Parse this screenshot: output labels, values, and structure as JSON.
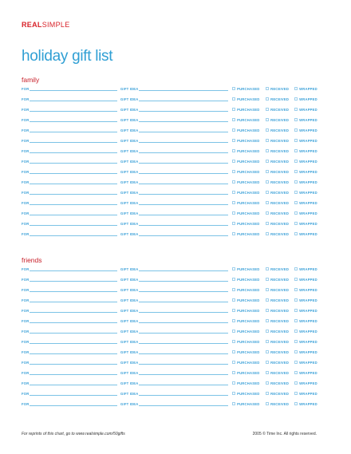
{
  "header": {
    "logo_real": "REAL",
    "logo_simple": "SIMPLE",
    "title": "holiday gift list"
  },
  "row_labels": {
    "for": "FOR",
    "gift_idea": "GIFT IDEA",
    "purchased": "PURCHASED",
    "received": "RECEIVED",
    "wrapped": "WRAPPED"
  },
  "sections": [
    {
      "title": "family",
      "row_count": 15
    },
    {
      "title": "friends",
      "row_count": 14
    }
  ],
  "footer": {
    "left": "For reprints of this chart, go to www.realsimple.com/50gifts",
    "right": "2005 © Time Inc. All rights reserved."
  },
  "colors": {
    "brand_red": "#d8232a",
    "title_blue": "#2f9fd4",
    "section_red": "#c8202a",
    "label_blue": "#3aa0d8"
  }
}
